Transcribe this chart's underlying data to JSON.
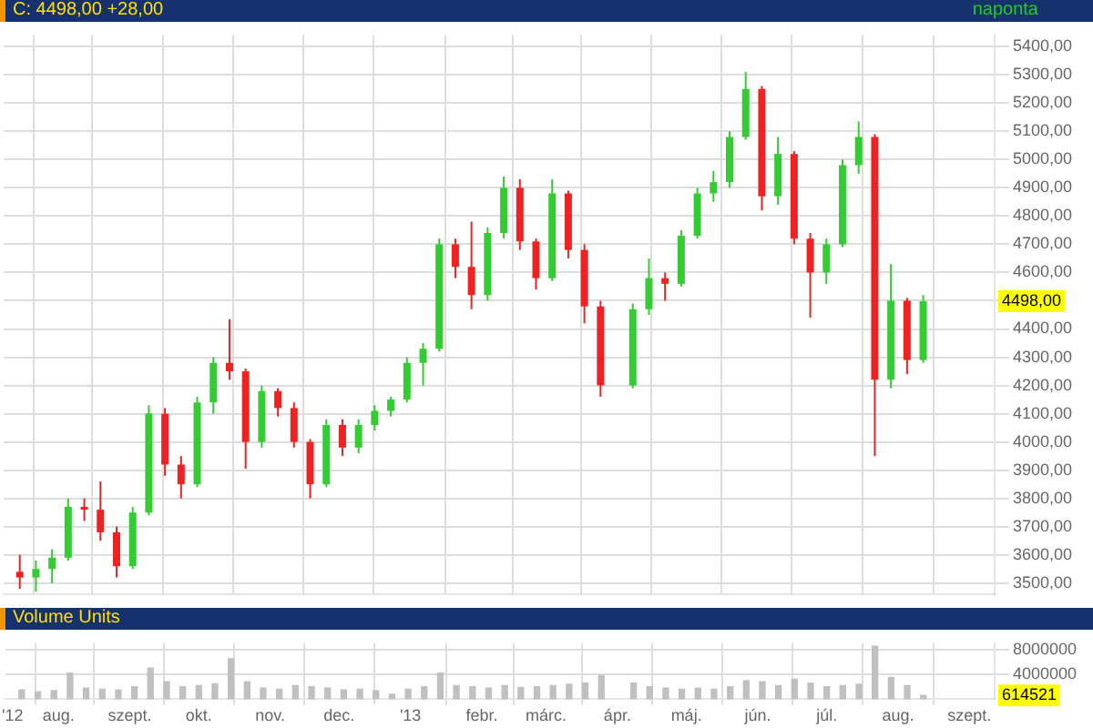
{
  "chart_data": [
    {
      "type": "candlestick",
      "title": "C: 4498,00 +28,00",
      "subtitle": "naponta",
      "x": [
        "2012-07-16",
        "2012-07-23",
        "2012-07-30",
        "2012-08-06",
        "2012-08-13",
        "2012-08-20",
        "2012-08-27",
        "2012-09-03",
        "2012-09-10",
        "2012-09-17",
        "2012-09-24",
        "2012-10-01",
        "2012-10-08",
        "2012-10-15",
        "2012-10-22",
        "2012-10-29",
        "2012-11-05",
        "2012-11-12",
        "2012-11-19",
        "2012-11-26",
        "2012-12-03",
        "2012-12-10",
        "2012-12-17",
        "2012-12-24",
        "2012-12-31",
        "2013-01-07",
        "2013-01-14",
        "2013-01-21",
        "2013-01-28",
        "2013-02-04",
        "2013-02-11",
        "2013-02-18",
        "2013-02-25",
        "2013-03-04",
        "2013-03-11",
        "2013-03-18",
        "2013-03-25",
        "2013-04-08",
        "2013-04-15",
        "2013-04-22",
        "2013-04-29",
        "2013-05-06",
        "2013-05-13",
        "2013-05-20",
        "2013-05-27",
        "2013-06-03",
        "2013-06-10",
        "2013-06-17",
        "2013-06-24",
        "2013-07-01",
        "2013-07-08",
        "2013-07-15",
        "2013-07-22",
        "2013-07-29",
        "2013-08-05",
        "2013-08-12"
      ],
      "ohlc": [
        [
          3540,
          3600,
          3480,
          3520
        ],
        [
          3520,
          3580,
          3470,
          3550
        ],
        [
          3550,
          3620,
          3500,
          3590
        ],
        [
          3590,
          3800,
          3580,
          3770
        ],
        [
          3770,
          3800,
          3720,
          3760
        ],
        [
          3760,
          3860,
          3650,
          3680
        ],
        [
          3680,
          3700,
          3520,
          3560
        ],
        [
          3560,
          3770,
          3550,
          3750
        ],
        [
          3750,
          4130,
          3740,
          4100
        ],
        [
          4100,
          4120,
          3880,
          3920
        ],
        [
          3920,
          3950,
          3800,
          3850
        ],
        [
          3850,
          4160,
          3840,
          4140
        ],
        [
          4140,
          4300,
          4100,
          4280
        ],
        [
          4280,
          4435,
          4220,
          4250
        ],
        [
          4250,
          4260,
          3905,
          4000
        ],
        [
          4000,
          4200,
          3980,
          4180
        ],
        [
          4180,
          4190,
          4090,
          4120
        ],
        [
          4120,
          4140,
          3980,
          4000
        ],
        [
          4000,
          4010,
          3800,
          3850
        ],
        [
          3850,
          4080,
          3840,
          4060
        ],
        [
          4060,
          4080,
          3950,
          3980
        ],
        [
          3980,
          4080,
          3960,
          4060
        ],
        [
          4060,
          4130,
          4040,
          4110
        ],
        [
          4110,
          4160,
          4090,
          4150
        ],
        [
          4150,
          4300,
          4140,
          4280
        ],
        [
          4280,
          4350,
          4200,
          4330
        ],
        [
          4330,
          4720,
          4320,
          4700
        ],
        [
          4700,
          4720,
          4580,
          4620
        ],
        [
          4620,
          4780,
          4470,
          4520
        ],
        [
          4520,
          4760,
          4500,
          4740
        ],
        [
          4740,
          4940,
          4720,
          4900
        ],
        [
          4900,
          4930,
          4680,
          4710
        ],
        [
          4710,
          4720,
          4540,
          4580
        ],
        [
          4580,
          4930,
          4570,
          4880
        ],
        [
          4880,
          4890,
          4650,
          4680
        ],
        [
          4680,
          4700,
          4420,
          4480
        ],
        [
          4480,
          4500,
          4160,
          4200
        ],
        [
          4200,
          4490,
          4190,
          4470
        ],
        [
          4470,
          4650,
          4450,
          4580
        ],
        [
          4580,
          4600,
          4500,
          4560
        ],
        [
          4560,
          4750,
          4550,
          4730
        ],
        [
          4730,
          4900,
          4720,
          4880
        ],
        [
          4880,
          4960,
          4850,
          4920
        ],
        [
          4920,
          5100,
          4900,
          5080
        ],
        [
          5080,
          5310,
          5070,
          5250
        ],
        [
          5250,
          5260,
          4820,
          4870
        ],
        [
          4870,
          5080,
          4840,
          5020
        ],
        [
          5020,
          5030,
          4700,
          4720
        ],
        [
          4720,
          4740,
          4440,
          4600
        ],
        [
          4600,
          4720,
          4560,
          4700
        ],
        [
          4700,
          5000,
          4690,
          4980
        ],
        [
          4980,
          5135,
          4950,
          5080
        ],
        [
          5080,
          5090,
          3950,
          4220
        ],
        [
          4220,
          4630,
          4190,
          4500
        ],
        [
          4500,
          4510,
          4240,
          4290
        ],
        [
          4290,
          4520,
          4280,
          4498
        ]
      ],
      "colors": [
        "#ee2222",
        "#33cc33",
        "#33cc33",
        "#33cc33",
        "#ee2222",
        "#ee2222",
        "#ee2222",
        "#33cc33",
        "#33cc33",
        "#ee2222",
        "#ee2222",
        "#33cc33",
        "#33cc33",
        "#ee2222",
        "#ee2222",
        "#33cc33",
        "#ee2222",
        "#ee2222",
        "#ee2222",
        "#33cc33",
        "#ee2222",
        "#33cc33",
        "#33cc33",
        "#33cc33",
        "#33cc33",
        "#33cc33",
        "#33cc33",
        "#ee2222",
        "#ee2222",
        "#33cc33",
        "#33cc33",
        "#ee2222",
        "#ee2222",
        "#33cc33",
        "#ee2222",
        "#ee2222",
        "#ee2222",
        "#33cc33",
        "#33cc33",
        "#ee2222",
        "#33cc33",
        "#33cc33",
        "#33cc33",
        "#33cc33",
        "#33cc33",
        "#ee2222",
        "#33cc33",
        "#ee2222",
        "#ee2222",
        "#33cc33",
        "#33cc33",
        "#33cc33",
        "#ee2222",
        "#33cc33",
        "#ee2222",
        "#33cc33"
      ],
      "xlim": [
        "2012-07-09",
        "2013-09-12"
      ],
      "xticks": [
        {
          "value": "2012-07-12",
          "label": null
        },
        {
          "value": "2012-08-01",
          "label": null
        },
        {
          "value": "2012-09-01",
          "label": null
        },
        {
          "value": "2012-10-01",
          "label": null
        },
        {
          "value": "2012-11-01",
          "label": null
        },
        {
          "value": "2012-12-01",
          "label": null
        },
        {
          "value": "2013-01-01",
          "label": null
        },
        {
          "value": "2013-02-01",
          "label": null
        },
        {
          "value": "2013-03-01",
          "label": null
        },
        {
          "value": "2013-04-01",
          "label": null
        },
        {
          "value": "2013-05-01",
          "label": null
        },
        {
          "value": "2013-06-01",
          "label": null
        },
        {
          "value": "2013-07-01",
          "label": null
        },
        {
          "value": "2013-08-01",
          "label": null
        },
        {
          "value": "2013-09-01",
          "label": null
        }
      ],
      "ylim": [
        3460,
        5440
      ],
      "yticks": [
        {
          "value": 3500,
          "label": "3500,00"
        },
        {
          "value": 3600,
          "label": "3600,00"
        },
        {
          "value": 3700,
          "label": "3700,00"
        },
        {
          "value": 3800,
          "label": "3800,00"
        },
        {
          "value": 3900,
          "label": "3900,00"
        },
        {
          "value": 4000,
          "label": "4000,00"
        },
        {
          "value": 4100,
          "label": "4100,00"
        },
        {
          "value": 4200,
          "label": "4200,00"
        },
        {
          "value": 4300,
          "label": "4300,00"
        },
        {
          "value": 4400,
          "label": "4400,00"
        },
        {
          "value": 4500,
          "label": null
        },
        {
          "value": 4600,
          "label": "4600,00"
        },
        {
          "value": 4700,
          "label": "4700,00"
        },
        {
          "value": 4800,
          "label": "4800,00"
        },
        {
          "value": 4900,
          "label": "4900,00"
        },
        {
          "value": 5000,
          "label": "5000,00"
        },
        {
          "value": 5100,
          "label": "5100,00"
        },
        {
          "value": 5200,
          "label": "5200,00"
        },
        {
          "value": 5300,
          "label": "5300,00"
        },
        {
          "value": 5400,
          "label": "5400,00"
        }
      ],
      "annotations": [
        "4498,00"
      ],
      "grid": true,
      "tick_labels": "y"
    },
    {
      "type": "bar",
      "title": "Volume Units",
      "x": [
        "2012-07-16",
        "2012-07-23",
        "2012-07-30",
        "2012-08-06",
        "2012-08-13",
        "2012-08-20",
        "2012-08-27",
        "2012-09-03",
        "2012-09-10",
        "2012-09-17",
        "2012-09-24",
        "2012-10-01",
        "2012-10-08",
        "2012-10-15",
        "2012-10-22",
        "2012-10-29",
        "2012-11-05",
        "2012-11-12",
        "2012-11-19",
        "2012-11-26",
        "2012-12-03",
        "2012-12-10",
        "2012-12-17",
        "2012-12-24",
        "2012-12-31",
        "2013-01-07",
        "2013-01-14",
        "2013-01-21",
        "2013-01-28",
        "2013-02-04",
        "2013-02-11",
        "2013-02-18",
        "2013-02-25",
        "2013-03-04",
        "2013-03-11",
        "2013-03-18",
        "2013-03-25",
        "2013-04-08",
        "2013-04-15",
        "2013-04-22",
        "2013-04-29",
        "2013-05-06",
        "2013-05-13",
        "2013-05-20",
        "2013-05-27",
        "2013-06-03",
        "2013-06-10",
        "2013-06-17",
        "2013-06-24",
        "2013-07-01",
        "2013-07-08",
        "2013-07-15",
        "2013-07-22",
        "2013-07-29",
        "2013-08-05",
        "2013-08-12"
      ],
      "values": [
        1500000,
        1200000,
        1400000,
        4200000,
        1800000,
        1600000,
        1500000,
        2000000,
        5000000,
        2800000,
        2000000,
        2200000,
        2500000,
        6500000,
        2800000,
        1800000,
        1600000,
        2200000,
        2000000,
        1800000,
        1500000,
        1600000,
        1400000,
        800000,
        1600000,
        2000000,
        4200000,
        2200000,
        2000000,
        1800000,
        2200000,
        1900000,
        2000000,
        2200000,
        2400000,
        2600000,
        3800000,
        2600000,
        2000000,
        1800000,
        1600000,
        1800000,
        1600000,
        2000000,
        3000000,
        2800000,
        2200000,
        3200000,
        2600000,
        2000000,
        2200000,
        2400000,
        8500000,
        3500000,
        2200000,
        614521
      ],
      "color": "#c0c0c0",
      "xlim": [
        "2012-07-09",
        "2013-09-12"
      ],
      "xticks": [
        {
          "value": "2012-07-12",
          "label": "'12"
        },
        {
          "value": "2012-08-01",
          "label": "aug."
        },
        {
          "value": "2012-09-01",
          "label": "szept."
        },
        {
          "value": "2012-10-01",
          "label": "okt."
        },
        {
          "value": "2012-11-01",
          "label": "nov."
        },
        {
          "value": "2012-12-01",
          "label": "dec."
        },
        {
          "value": "2013-01-01",
          "label": "'13"
        },
        {
          "value": "2013-02-01",
          "label": "febr."
        },
        {
          "value": "2013-03-01",
          "label": "márc."
        },
        {
          "value": "2013-04-01",
          "label": "ápr."
        },
        {
          "value": "2013-05-01",
          "label": "máj."
        },
        {
          "value": "2013-06-01",
          "label": "jún."
        },
        {
          "value": "2013-07-01",
          "label": "júl."
        },
        {
          "value": "2013-08-01",
          "label": "aug."
        },
        {
          "value": "2013-09-01",
          "label": "szept."
        }
      ],
      "ylim": [
        0,
        9000000
      ],
      "yticks": [
        4000000,
        8000000
      ],
      "annotations": [
        "614521"
      ],
      "grid": true
    }
  ]
}
